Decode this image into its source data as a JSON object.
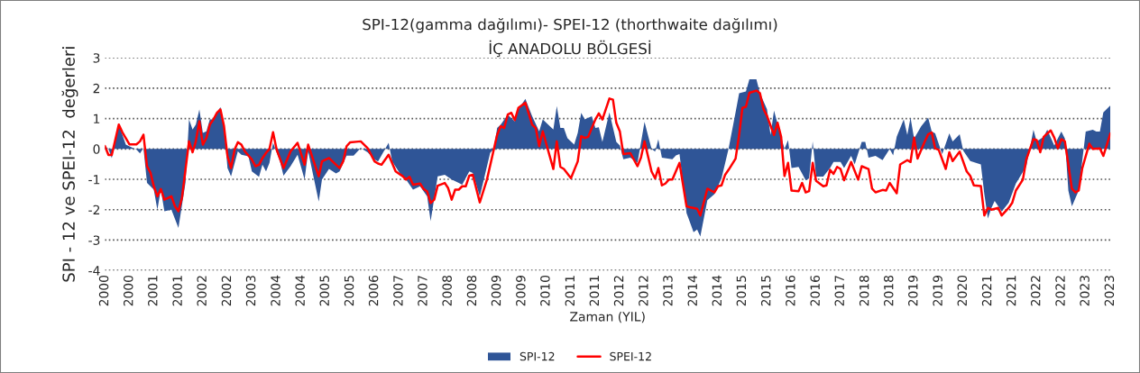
{
  "chart_data": {
    "type": "area",
    "title": "SPI-12(gamma dağılımı)- SPEI-12 (thorthwaite dağılımı)",
    "subtitle": "İÇ ANADOLU BÖLGESİ",
    "xlabel": "Zaman (YIL)",
    "ylabel": "SPI - 12 ve SPEI-12  değerleri",
    "xlim": [
      "2000-01",
      "2023-12"
    ],
    "ylim": [
      -4,
      3
    ],
    "yticks": [
      -4,
      -3,
      -2,
      -1,
      0,
      1,
      2,
      3
    ],
    "xticks": [
      {
        "value": "2000-01",
        "label": "2000"
      },
      {
        "value": "2000-08",
        "label": "2000"
      },
      {
        "value": "2001-03",
        "label": "2001"
      },
      {
        "value": "2001-10",
        "label": "2001"
      },
      {
        "value": "2002-05",
        "label": "2002"
      },
      {
        "value": "2002-12",
        "label": "2002"
      },
      {
        "value": "2003-07",
        "label": "2003"
      },
      {
        "value": "2004-02",
        "label": "2004"
      },
      {
        "value": "2004-09",
        "label": "2004"
      },
      {
        "value": "2005-04",
        "label": "2005"
      },
      {
        "value": "2005-11",
        "label": "2005"
      },
      {
        "value": "2006-06",
        "label": "2006"
      },
      {
        "value": "2007-01",
        "label": "2007"
      },
      {
        "value": "2007-08",
        "label": "2007"
      },
      {
        "value": "2008-03",
        "label": "2008"
      },
      {
        "value": "2008-10",
        "label": "2008"
      },
      {
        "value": "2009-05",
        "label": "2009"
      },
      {
        "value": "2009-12",
        "label": "2009"
      },
      {
        "value": "2010-07",
        "label": "2010"
      },
      {
        "value": "2011-02",
        "label": "2011"
      },
      {
        "value": "2011-09",
        "label": "2011"
      },
      {
        "value": "2012-04",
        "label": "2012"
      },
      {
        "value": "2012-11",
        "label": "2012"
      },
      {
        "value": "2013-06",
        "label": "2013"
      },
      {
        "value": "2014-01",
        "label": "2014"
      },
      {
        "value": "2014-08",
        "label": "2014"
      },
      {
        "value": "2015-03",
        "label": "2015"
      },
      {
        "value": "2015-10",
        "label": "2015"
      },
      {
        "value": "2016-05",
        "label": "2016"
      },
      {
        "value": "2016-12",
        "label": "2016"
      },
      {
        "value": "2017-07",
        "label": "2017"
      },
      {
        "value": "2018-02",
        "label": "2018"
      },
      {
        "value": "2018-09",
        "label": "2018"
      },
      {
        "value": "2019-04",
        "label": "2019"
      },
      {
        "value": "2019-11",
        "label": "2019"
      },
      {
        "value": "2020-06",
        "label": "2020"
      },
      {
        "value": "2021-01",
        "label": "2021"
      },
      {
        "value": "2021-08",
        "label": "2021"
      },
      {
        "value": "2022-03",
        "label": "2022"
      },
      {
        "value": "2022-10",
        "label": "2022"
      },
      {
        "value": "2023-05",
        "label": "2023"
      },
      {
        "value": "2023-12",
        "label": "2023"
      }
    ],
    "grid": "y",
    "legend": "bottom",
    "line_style": "solid",
    "series": [
      {
        "name": "SPI-12",
        "color": "#2f5597",
        "x": [
          "2000-01",
          "2000-02",
          "2000-03",
          "2000-05",
          "2000-07",
          "2000-09",
          "2000-10",
          "2000-11",
          "2000-12",
          "2001-01",
          "2001-03",
          "2001-04",
          "2001-05",
          "2001-06",
          "2001-08",
          "2001-10",
          "2001-12",
          "2002-01",
          "2002-02",
          "2002-03",
          "2002-04",
          "2002-05",
          "2002-06",
          "2002-07",
          "2002-08",
          "2002-10",
          "2002-11",
          "2002-12",
          "2003-01",
          "2003-03",
          "2003-04",
          "2003-06",
          "2003-07",
          "2003-09",
          "2003-10",
          "2003-11",
          "2003-12",
          "2004-01",
          "2004-03",
          "2004-04",
          "2004-06",
          "2004-08",
          "2004-10",
          "2004-11",
          "2005-02",
          "2005-03",
          "2005-05",
          "2005-07",
          "2005-08",
          "2005-10",
          "2005-12",
          "2006-02",
          "2006-04",
          "2006-06",
          "2006-07",
          "2006-10",
          "2006-11",
          "2007-01",
          "2007-03",
          "2007-05",
          "2007-07",
          "2007-09",
          "2007-10",
          "2007-12",
          "2008-02",
          "2008-04",
          "2008-06",
          "2008-07",
          "2008-09",
          "2008-10",
          "2008-12",
          "2009-01",
          "2009-03",
          "2009-04",
          "2009-05",
          "2009-06",
          "2009-08",
          "2009-10",
          "2009-11",
          "2010-01",
          "2010-03",
          "2010-05",
          "2010-06",
          "2010-08",
          "2010-09",
          "2010-10",
          "2010-11",
          "2010-12",
          "2011-01",
          "2011-03",
          "2011-04",
          "2011-05",
          "2011-06",
          "2011-08",
          "2011-09",
          "2011-10",
          "2011-11",
          "2012-01",
          "2012-03",
          "2012-04",
          "2012-05",
          "2012-07",
          "2012-09",
          "2012-11",
          "2013-01",
          "2013-02",
          "2013-03",
          "2013-04",
          "2013-07",
          "2013-08",
          "2013-09",
          "2013-11",
          "2014-01",
          "2014-02",
          "2014-03",
          "2014-05",
          "2014-07",
          "2014-09",
          "2014-11",
          "2015-01",
          "2015-02",
          "2015-04",
          "2015-05",
          "2015-07",
          "2015-08",
          "2015-10",
          "2015-11",
          "2015-12",
          "2016-03",
          "2016-04",
          "2016-05",
          "2016-07",
          "2016-09",
          "2016-10",
          "2016-11",
          "2016-12",
          "2017-02",
          "2017-04",
          "2017-05",
          "2017-07",
          "2017-08",
          "2017-10",
          "2017-11",
          "2018-01",
          "2018-02",
          "2018-03",
          "2018-05",
          "2018-07",
          "2018-09",
          "2018-10",
          "2018-11",
          "2019-01",
          "2019-02",
          "2019-03",
          "2019-04",
          "2019-06",
          "2019-08",
          "2019-09",
          "2019-10",
          "2019-12",
          "2020-02",
          "2020-03",
          "2020-05",
          "2020-06",
          "2020-08",
          "2020-11",
          "2020-12",
          "2021-01",
          "2021-02",
          "2021-03",
          "2021-05",
          "2021-07",
          "2021-09",
          "2021-12",
          "2022-02",
          "2022-03",
          "2022-05",
          "2022-06",
          "2022-08",
          "2022-10",
          "2022-11",
          "2022-12",
          "2023-01",
          "2023-03",
          "2023-05",
          "2023-07",
          "2023-08",
          "2023-09",
          "2023-10",
          "2023-12"
        ],
        "values": [
          0.09,
          0,
          -0.3,
          0.8,
          0.14,
          0.03,
          -0.02,
          -0.15,
          0.03,
          -1.12,
          -1.34,
          -2.0,
          -1.34,
          -2.05,
          -2.0,
          -2.6,
          -1.12,
          0.97,
          0.64,
          0.8,
          1.3,
          0.53,
          0.58,
          0.97,
          0.97,
          1.38,
          0.75,
          -0.63,
          -0.9,
          -0.08,
          -0.19,
          -0.24,
          -0.74,
          -0.92,
          -0.52,
          -0.74,
          -0.46,
          0.2,
          -0.41,
          -0.88,
          -0.57,
          -0.19,
          -1.01,
          -0.08,
          -1.73,
          -1.01,
          -0.66,
          -0.81,
          -0.74,
          -0.22,
          -0.22,
          0.03,
          -0.11,
          -0.35,
          -0.41,
          0.2,
          -0.41,
          -0.77,
          -1.01,
          -1.34,
          -1.23,
          -1.56,
          -2.38,
          -0.9,
          -0.85,
          -1.01,
          -1.12,
          -1.18,
          -0.74,
          -0.79,
          -1.56,
          -1.07,
          -0.13,
          0,
          0.69,
          0.8,
          1.13,
          0.91,
          1.3,
          1.65,
          1.08,
          0.58,
          0.97,
          0.75,
          0.64,
          1.41,
          0.69,
          0.69,
          0.36,
          0.14,
          0.53,
          1.19,
          0.97,
          1.08,
          0.69,
          0.71,
          0.23,
          1.2,
          0.23,
          0.11,
          -0.34,
          -0.29,
          -0.46,
          0.89,
          0,
          -0.09,
          0.32,
          -0.29,
          -0.34,
          -0.21,
          -0.17,
          -2.11,
          -2.74,
          -2.65,
          -2.88,
          -1.69,
          -1.49,
          -0.97,
          0,
          1.2,
          1.83,
          1.89,
          2.29,
          2.29,
          1.83,
          1.31,
          0.46,
          1.26,
          0,
          0.29,
          -0.63,
          -0.59,
          -1.03,
          -0.97,
          0.25,
          -0.91,
          -0.91,
          -0.63,
          -0.43,
          -0.43,
          -0.63,
          -0.23,
          -0.51,
          0.23,
          0.23,
          -0.29,
          -0.23,
          -0.37,
          0,
          -0.21,
          0.4,
          0.97,
          0.46,
          1.03,
          0.34,
          0.74,
          1.03,
          0.57,
          0.51,
          -0.17,
          0.51,
          0.25,
          0.48,
          -0.06,
          -0.4,
          -0.51,
          -1.49,
          -2.29,
          -1.94,
          -1.71,
          -2.06,
          -1.77,
          -1.14,
          -0.57,
          0.63,
          0.25,
          0.4,
          0.63,
          0.11,
          0.57,
          0.34,
          -1.37,
          -1.89,
          -1.37,
          0.57,
          0.63,
          0.57,
          0.57,
          1.2,
          1.43
        ]
      },
      {
        "name": "SPEI-12",
        "type": "line",
        "color": "#ff0000",
        "x": [
          "2000-01",
          "2000-02",
          "2000-03",
          "2000-05",
          "2000-06",
          "2000-08",
          "2000-10",
          "2000-11",
          "2000-12",
          "2001-01",
          "2001-02",
          "2001-03",
          "2001-04",
          "2001-05",
          "2001-06",
          "2001-08",
          "2001-09",
          "2001-10",
          "2001-11",
          "2002-01",
          "2002-02",
          "2002-03",
          "2002-04",
          "2002-05",
          "2002-06",
          "2002-07",
          "2002-08",
          "2002-09",
          "2002-10",
          "2002-11",
          "2002-12",
          "2003-01",
          "2003-02",
          "2003-03",
          "2003-04",
          "2003-05",
          "2003-07",
          "2003-08",
          "2003-09",
          "2003-10",
          "2003-11",
          "2003-12",
          "2004-01",
          "2004-02",
          "2004-04",
          "2004-06",
          "2004-08",
          "2004-10",
          "2004-11",
          "2005-02",
          "2005-03",
          "2005-05",
          "2005-08",
          "2005-09",
          "2005-10",
          "2005-11",
          "2006-02",
          "2006-04",
          "2006-06",
          "2006-07",
          "2006-08",
          "2006-10",
          "2006-12",
          "2007-02",
          "2007-03",
          "2007-04",
          "2007-05",
          "2007-07",
          "2007-08",
          "2007-09",
          "2007-10",
          "2007-11",
          "2007-12",
          "2008-02",
          "2008-03",
          "2008-04",
          "2008-05",
          "2008-06",
          "2008-07",
          "2008-08",
          "2008-09",
          "2008-10",
          "2008-12",
          "2009-02",
          "2009-05",
          "2009-06",
          "2009-07",
          "2009-08",
          "2009-09",
          "2009-10",
          "2009-11",
          "2010-01",
          "2010-03",
          "2010-04",
          "2010-05",
          "2010-06",
          "2010-09",
          "2010-10",
          "2010-11",
          "2010-12",
          "2011-02",
          "2011-04",
          "2011-05",
          "2011-06",
          "2011-07",
          "2011-09",
          "2011-10",
          "2011-11",
          "2012-01",
          "2012-02",
          "2012-03",
          "2012-04",
          "2012-05",
          "2012-07",
          "2012-09",
          "2012-10",
          "2012-11",
          "2013-01",
          "2013-02",
          "2013-03",
          "2013-04",
          "2013-05",
          "2013-06",
          "2013-07",
          "2013-09",
          "2013-11",
          "2013-12",
          "2014-02",
          "2014-03",
          "2014-05",
          "2014-07",
          "2014-08",
          "2014-09",
          "2014-10",
          "2014-11",
          "2015-01",
          "2015-02",
          "2015-03",
          "2015-04",
          "2015-05",
          "2015-07",
          "2015-08",
          "2015-09",
          "2015-10",
          "2015-12",
          "2016-01",
          "2016-02",
          "2016-03",
          "2016-04",
          "2016-05",
          "2016-07",
          "2016-08",
          "2016-09",
          "2016-10",
          "2016-11",
          "2016-12",
          "2017-02",
          "2017-03",
          "2017-04",
          "2017-05",
          "2017-06",
          "2017-07",
          "2017-08",
          "2017-10",
          "2017-12",
          "2018-01",
          "2018-03",
          "2018-04",
          "2018-05",
          "2018-07",
          "2018-08",
          "2018-09",
          "2018-11",
          "2018-12",
          "2019-02",
          "2019-03",
          "2019-04",
          "2019-05",
          "2019-07",
          "2019-08",
          "2019-09",
          "2019-10",
          "2019-11",
          "2020-01",
          "2020-02",
          "2020-03",
          "2020-05",
          "2020-07",
          "2020-08",
          "2020-09",
          "2020-11",
          "2020-12",
          "2021-01",
          "2021-02",
          "2021-04",
          "2021-05",
          "2021-07",
          "2021-08",
          "2021-09",
          "2021-11",
          "2021-12",
          "2022-02",
          "2022-03",
          "2022-04",
          "2022-05",
          "2022-07",
          "2022-08",
          "2022-09",
          "2022-10",
          "2022-11",
          "2023-01",
          "2023-02",
          "2023-03",
          "2023-04",
          "2023-06",
          "2023-07",
          "2023-09",
          "2023-10",
          "2023-12"
        ],
        "values": [
          0.1,
          -0.2,
          -0.2,
          0.8,
          0.55,
          0.15,
          0.15,
          0.25,
          0.47,
          -0.57,
          -0.79,
          -1.23,
          -1.56,
          -1.32,
          -1.67,
          -1.56,
          -1.89,
          -2.05,
          -1.6,
          0.25,
          -0.11,
          0.25,
          0.91,
          0.14,
          0.36,
          0.8,
          0.97,
          1.19,
          1.3,
          0.75,
          -0.24,
          -0.63,
          -0.02,
          0.22,
          0.14,
          -0.08,
          -0.35,
          -0.57,
          -0.52,
          -0.3,
          -0.13,
          0,
          0.55,
          -0.02,
          -0.63,
          -0.08,
          0.2,
          -0.52,
          0.14,
          -0.9,
          -0.41,
          -0.3,
          -0.63,
          -0.41,
          0.09,
          0.22,
          0.25,
          0.03,
          -0.41,
          -0.48,
          -0.52,
          -0.19,
          -0.74,
          -0.9,
          -1.01,
          -0.92,
          -1.18,
          -1.14,
          -1.32,
          -1.4,
          -1.78,
          -1.67,
          -1.21,
          -1.12,
          -1.29,
          -1.67,
          -1.34,
          -1.34,
          -1.23,
          -1.23,
          -0.88,
          -0.85,
          -1.76,
          -1.01,
          0.47,
          0.75,
          0.69,
          1.13,
          1.19,
          0.95,
          1.35,
          1.52,
          0.8,
          0.69,
          0.09,
          0.58,
          -0.66,
          0.25,
          -0.59,
          -0.66,
          -0.96,
          -0.41,
          0.42,
          0.36,
          0.4,
          0.97,
          1.17,
          0.97,
          1.66,
          1.62,
          0.86,
          0.57,
          -0.17,
          -0.14,
          -0.57,
          -0.29,
          0.25,
          -0.74,
          -0.97,
          -0.63,
          -1.2,
          -1.14,
          -1.01,
          -1.01,
          -0.46,
          -1.89,
          -1.92,
          -1.97,
          -2.19,
          -1.31,
          -1.43,
          -1.23,
          -1.2,
          -0.86,
          -0.69,
          -0.32,
          0.46,
          1.35,
          1.39,
          1.85,
          1.92,
          1.83,
          1.31,
          1.09,
          0.46,
          0.86,
          0.4,
          -0.89,
          -0.46,
          -1.37,
          -1.39,
          -1.12,
          -1.43,
          -1.39,
          -0.46,
          -1.05,
          -1.23,
          -1.2,
          -0.69,
          -0.82,
          -0.59,
          -0.66,
          -1.03,
          -0.43,
          -1.01,
          -0.57,
          -0.66,
          -1.31,
          -1.43,
          -1.35,
          -1.37,
          -1.12,
          -1.46,
          -0.51,
          -0.37,
          -0.43,
          0.37,
          -0.32,
          0.23,
          0.48,
          0.54,
          0.02,
          -0.03,
          -0.66,
          -0.11,
          -0.4,
          -0.09,
          -0.74,
          -0.89,
          -1.2,
          -1.22,
          -2.19,
          -1.94,
          -2.0,
          -1.94,
          -2.19,
          -1.94,
          -1.77,
          -1.37,
          -1.01,
          -0.34,
          0.32,
          0.29,
          -0.11,
          0.4,
          0.61,
          0.37,
          0.02,
          0.32,
          0.25,
          -1.31,
          -1.43,
          -1.37,
          -0.63,
          0.17,
          0,
          0.02,
          -0.23,
          0.51
        ]
      }
    ]
  }
}
